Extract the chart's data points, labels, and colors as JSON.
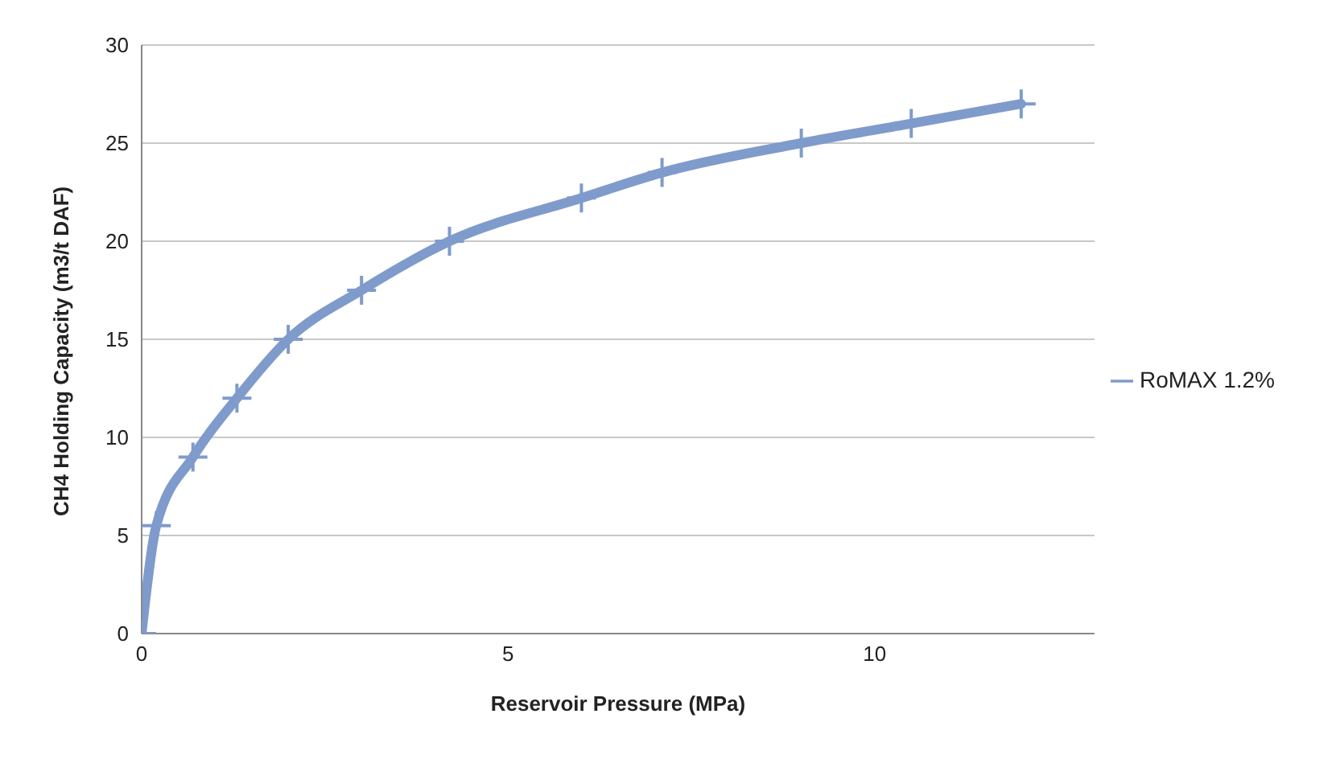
{
  "chart_data": {
    "type": "line",
    "xlabel": "Reservoir Pressure (MPa)",
    "ylabel": "CH4 Holding Capacity (m3/t DAF)",
    "x": [
      0,
      0.2,
      0.7,
      1.3,
      2.0,
      3.0,
      4.2,
      6.0,
      7.1,
      9.0,
      10.5,
      12.0
    ],
    "series": [
      {
        "name": "RoMAX 1.2%",
        "color": "#7f9bcc",
        "values": [
          0,
          5.5,
          9.0,
          12.0,
          15.0,
          17.5,
          20.0,
          22.2,
          23.5,
          25.0,
          26.0,
          27.0
        ]
      }
    ],
    "xlim": [
      0,
      13
    ],
    "xticks": [
      0,
      5,
      10
    ],
    "ylim": [
      0,
      30
    ],
    "yticks": [
      0,
      5,
      10,
      15,
      20,
      25,
      30
    ],
    "grid": "y",
    "legend": "right",
    "marker": "cross",
    "line_style": "solid"
  }
}
